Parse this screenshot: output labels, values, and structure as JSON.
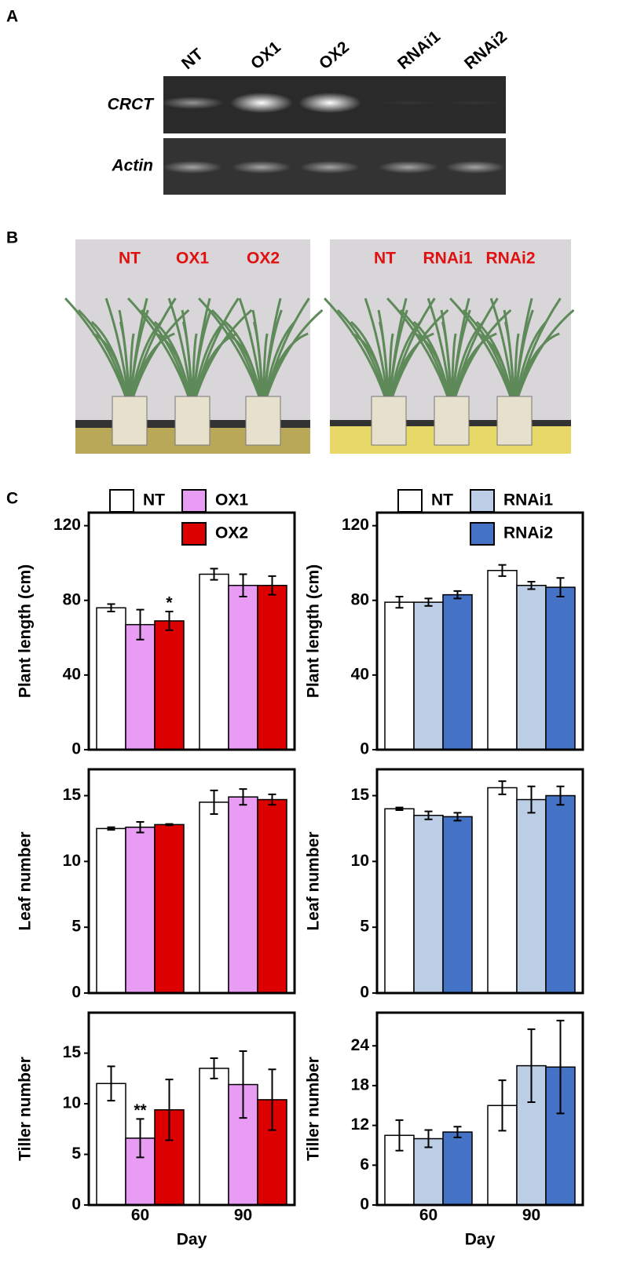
{
  "panel_labels": [
    "A",
    "B",
    "C"
  ],
  "gel": {
    "lanes": [
      "NT",
      "OX1",
      "OX2",
      "RNAi1",
      "RNAi2"
    ],
    "rows": [
      "CRCT",
      "Actin"
    ]
  },
  "photos": [
    {
      "labels": [
        "NT",
        "OX1",
        "OX2"
      ]
    },
    {
      "labels": [
        "NT",
        "RNAi1",
        "RNAi2"
      ]
    }
  ],
  "chart_data": [
    {
      "type": "bar",
      "ylabel": "Plant length (cm)",
      "ylim": [
        0,
        127
      ],
      "yticks": [
        0,
        40,
        80,
        120
      ],
      "series": [
        {
          "name": "NT",
          "color": "#ffffff",
          "values": [
            76,
            94
          ],
          "errors": [
            2,
            3
          ]
        },
        {
          "name": "OX1",
          "color": "#e89cf3",
          "values": [
            67,
            88
          ],
          "errors": [
            8,
            6
          ]
        },
        {
          "name": "OX2",
          "color": "#dd0000",
          "values": [
            69,
            88
          ],
          "errors": [
            5,
            5
          ],
          "annotations": [
            "*",
            null
          ]
        }
      ]
    },
    {
      "type": "bar",
      "ylabel": "Plant length (cm)",
      "ylim": [
        0,
        127
      ],
      "yticks": [
        0,
        40,
        80,
        120
      ],
      "series": [
        {
          "name": "NT",
          "color": "#ffffff",
          "values": [
            79,
            96
          ],
          "errors": [
            3,
            3
          ]
        },
        {
          "name": "RNAi1",
          "color": "#bccde6",
          "values": [
            79,
            88
          ],
          "errors": [
            2,
            2
          ]
        },
        {
          "name": "RNAi2",
          "color": "#4472c4",
          "values": [
            83,
            87
          ],
          "errors": [
            2,
            5
          ]
        }
      ]
    },
    {
      "type": "bar",
      "ylabel": "Leaf number",
      "ylim": [
        0,
        17
      ],
      "yticks": [
        0,
        5,
        10,
        15
      ],
      "series": [
        {
          "color": "#ffffff",
          "values": [
            12.5,
            14.5
          ],
          "errors": [
            0.1,
            0.9
          ]
        },
        {
          "color": "#e89cf3",
          "values": [
            12.6,
            14.9
          ],
          "errors": [
            0.4,
            0.6
          ]
        },
        {
          "color": "#dd0000",
          "values": [
            12.8,
            14.7
          ],
          "errors": [
            0.05,
            0.4
          ]
        }
      ]
    },
    {
      "type": "bar",
      "ylabel": "Leaf number",
      "ylim": [
        0,
        17
      ],
      "yticks": [
        0,
        5,
        10,
        15
      ],
      "series": [
        {
          "color": "#ffffff",
          "values": [
            14.0,
            15.6
          ],
          "errors": [
            0.1,
            0.5
          ]
        },
        {
          "color": "#bccde6",
          "values": [
            13.5,
            14.7
          ],
          "errors": [
            0.3,
            1.0
          ]
        },
        {
          "color": "#4472c4",
          "values": [
            13.4,
            15.0
          ],
          "errors": [
            0.3,
            0.7
          ]
        }
      ]
    },
    {
      "type": "bar",
      "ylabel": "Tiller number",
      "ylim": [
        0,
        19
      ],
      "yticks": [
        0,
        5,
        10,
        15
      ],
      "categories": [
        "60",
        "90"
      ],
      "xlabel": "Day",
      "series": [
        {
          "color": "#ffffff",
          "values": [
            12,
            13.5
          ],
          "errors": [
            1.7,
            1
          ]
        },
        {
          "color": "#e89cf3",
          "values": [
            6.6,
            11.9
          ],
          "errors": [
            1.9,
            3.3
          ],
          "annotations": [
            "**",
            null
          ]
        },
        {
          "color": "#dd0000",
          "values": [
            9.4,
            10.4
          ],
          "errors": [
            3,
            3
          ]
        }
      ]
    },
    {
      "type": "bar",
      "ylabel": "Tiller number",
      "ylim": [
        0,
        29
      ],
      "yticks": [
        0,
        6,
        12,
        18,
        24
      ],
      "categories": [
        "60",
        "90"
      ],
      "xlabel": "Day",
      "series": [
        {
          "color": "#ffffff",
          "values": [
            10.5,
            15
          ],
          "errors": [
            2.3,
            3.8
          ]
        },
        {
          "color": "#bccde6",
          "values": [
            10,
            21
          ],
          "errors": [
            1.3,
            5.5
          ]
        },
        {
          "color": "#4472c4",
          "values": [
            11,
            20.8
          ],
          "errors": [
            0.8,
            7
          ]
        }
      ]
    }
  ]
}
